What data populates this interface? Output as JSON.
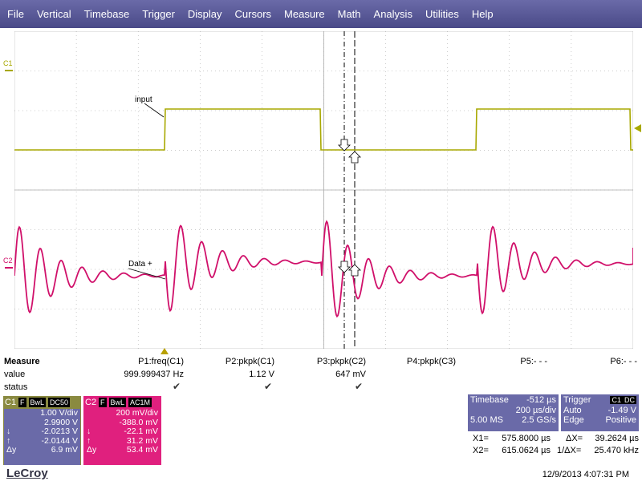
{
  "menu": [
    "File",
    "Vertical",
    "Timebase",
    "Trigger",
    "Display",
    "Cursors",
    "Measure",
    "Math",
    "Analysis",
    "Utilities",
    "Help"
  ],
  "channels": {
    "c1_label": "C1",
    "c2_label": "C2",
    "c1_trace_label": "input",
    "c2_trace_label": "Data +",
    "c1_color": "#a8a800",
    "c2_color": "#d0106a"
  },
  "measure": {
    "title": "Measure",
    "row_value": "value",
    "row_status": "status",
    "params": [
      {
        "name": "P1:freq(C1)",
        "value": "999.999437 Hz",
        "status": "✔"
      },
      {
        "name": "P2:pkpk(C1)",
        "value": "1.12 V",
        "status": "✔"
      },
      {
        "name": "P3:pkpk(C2)",
        "value": "647 mV",
        "status": "✔"
      },
      {
        "name": "P4:pkpk(C3)",
        "value": "",
        "status": ""
      },
      {
        "name": "P5:- - -",
        "value": "",
        "status": ""
      },
      {
        "name": "P6:- - -",
        "value": "",
        "status": ""
      }
    ]
  },
  "c1_box": {
    "label": "C1",
    "tags": [
      "F",
      "BwL",
      "DC50"
    ],
    "rows": [
      {
        "k": "",
        "v": "1.00 V/div"
      },
      {
        "k": "",
        "v": "2.9900 V"
      },
      {
        "k": "↓",
        "v": "-2.0213 V"
      },
      {
        "k": "↑",
        "v": "-2.0144 V"
      },
      {
        "k": "Δy",
        "v": "6.9 mV"
      }
    ]
  },
  "c2_box": {
    "label": "C2",
    "tags": [
      "F",
      "BwL",
      "AC1M"
    ],
    "rows": [
      {
        "k": "",
        "v": "200 mV/div"
      },
      {
        "k": "",
        "v": "-388.0 mV"
      },
      {
        "k": "↓",
        "v": "-22.1 mV"
      },
      {
        "k": "↑",
        "v": "31.2 mV"
      },
      {
        "k": "Δy",
        "v": "53.4 mV"
      }
    ]
  },
  "timebase": {
    "label": "Timebase",
    "delay": "-512 µs",
    "div": "200 µs/div",
    "samples": "5.00 MS",
    "rate": "2.5 GS/s"
  },
  "trigger": {
    "label": "Trigger",
    "tags": [
      "C1",
      "DC"
    ],
    "mode": "Auto",
    "level": "-1.49 V",
    "type": "Edge",
    "slope": "Positive"
  },
  "cursors": {
    "x1_label": "X1=",
    "x1": "575.8000 µs",
    "dx_label": "ΔX=",
    "dx": "39.2624 µs",
    "x2_label": "X2=",
    "x2": "615.0624 µs",
    "inv_label": "1/ΔX=",
    "inv": "25.470 kHz"
  },
  "brand": "LeCroy",
  "timestamp": "12/9/2013 4:07:31 PM"
}
